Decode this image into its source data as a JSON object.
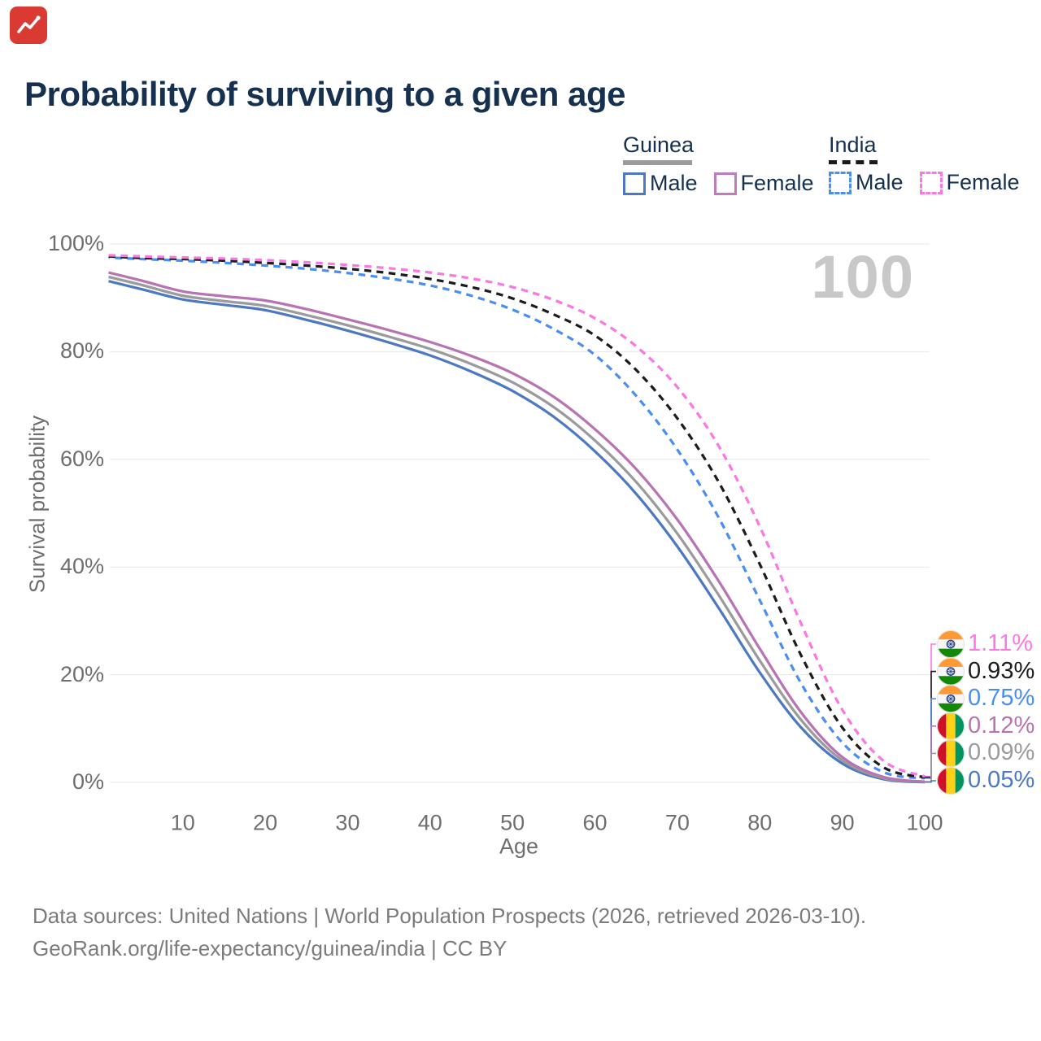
{
  "logo": {
    "name": "GeoRank",
    "color": "#d93b33",
    "glyph": "line-chart"
  },
  "title": "Probability of surviving to a given age",
  "watermark": "100",
  "legend": {
    "groups": [
      {
        "label": "Guinea",
        "underline_style": "solid",
        "underline_color": "#9b9b9b",
        "items": [
          {
            "label": "Male",
            "color": "#4d79c2",
            "dashed": false
          },
          {
            "label": "Female",
            "color": "#c07bbd",
            "dashed": false
          }
        ]
      },
      {
        "label": "India",
        "underline_style": "dashed",
        "underline_color": "#1a1a1a",
        "items": [
          {
            "label": "Male",
            "color": "#4a8ef2",
            "dashed": true
          },
          {
            "label": "Female",
            "color": "#fb78e2",
            "dashed": true
          }
        ]
      }
    ]
  },
  "footer": {
    "line1": "Data sources: United Nations | World Population Prospects (2026, retrieved 2026-03-10).",
    "line2": "GeoRank.org/life-expectancy/guinea/india | CC BY"
  },
  "chart_data": {
    "type": "line",
    "title": "Probability of surviving to a given age",
    "xlabel": "Age",
    "ylabel": "Survival probability",
    "xlim": [
      1,
      100
    ],
    "ylim": [
      0,
      100
    ],
    "grid": "horizontal",
    "legend_position": "top-right",
    "x_axis": {
      "label": "Age",
      "ticks": [
        {
          "v": 10,
          "label": "10"
        },
        {
          "v": 20,
          "label": "20"
        },
        {
          "v": 30,
          "label": "30"
        },
        {
          "v": 40,
          "label": "40"
        },
        {
          "v": 50,
          "label": "50"
        },
        {
          "v": 60,
          "label": "60"
        },
        {
          "v": 70,
          "label": "70"
        },
        {
          "v": 80,
          "label": "80"
        },
        {
          "v": 90,
          "label": "90"
        },
        {
          "v": 100,
          "label": "100"
        }
      ]
    },
    "y_axis": {
      "label": "Survival probability",
      "ticks": [
        {
          "v": 0,
          "label": "0%"
        },
        {
          "v": 20,
          "label": "20%"
        },
        {
          "v": 40,
          "label": "40%"
        },
        {
          "v": 60,
          "label": "60%"
        },
        {
          "v": 80,
          "label": "80%"
        },
        {
          "v": 100,
          "label": "100%"
        }
      ]
    },
    "ages": [
      1,
      5,
      10,
      15,
      20,
      25,
      30,
      35,
      40,
      45,
      50,
      55,
      60,
      65,
      70,
      75,
      80,
      85,
      90,
      95,
      100
    ],
    "series": [
      {
        "name": "India Female",
        "country": "India",
        "sex": "Female",
        "color": "#fb78e2",
        "dashed": true,
        "flag": "india",
        "end_label": "1.11%",
        "values": [
          97.9,
          97.7,
          97.5,
          97.3,
          97.0,
          96.6,
          96.1,
          95.5,
          94.7,
          93.6,
          92.0,
          89.6,
          86.2,
          81.0,
          73.4,
          62.5,
          47.5,
          29.5,
          13.5,
          4.0,
          1.11
        ]
      },
      {
        "name": "India Both sexes",
        "country": "India",
        "sex": "Both",
        "color": "#1c1c1c",
        "dashed": true,
        "flag": "india",
        "end_label": "0.93%",
        "values": [
          97.7,
          97.4,
          97.2,
          96.9,
          96.5,
          96.0,
          95.4,
          94.6,
          93.5,
          92.0,
          89.9,
          86.9,
          83.0,
          76.6,
          67.6,
          55.8,
          40.5,
          23.6,
          10.2,
          2.8,
          0.93
        ]
      },
      {
        "name": "India Male",
        "country": "India",
        "sex": "Male",
        "color": "#4a8ef2",
        "dashed": true,
        "flag": "india",
        "end_label": "0.75%",
        "values": [
          97.5,
          97.2,
          96.9,
          96.5,
          96.0,
          95.4,
          94.6,
          93.6,
          92.3,
          90.4,
          87.8,
          84.2,
          79.4,
          71.8,
          61.8,
          49.2,
          33.8,
          18.4,
          7.4,
          1.9,
          0.75
        ]
      },
      {
        "name": "Guinea Female",
        "country": "Guinea",
        "sex": "Female",
        "color": "#b873b3",
        "dashed": false,
        "flag": "guinea",
        "end_label": "0.12%",
        "values": [
          94.7,
          93.2,
          91.2,
          90.3,
          89.5,
          87.9,
          86.0,
          84.0,
          81.8,
          79.2,
          76.0,
          71.6,
          65.6,
          58.2,
          48.8,
          37.4,
          24.8,
          13.0,
          4.7,
          1.0,
          0.12
        ]
      },
      {
        "name": "Guinea Both sexes",
        "country": "Guinea",
        "sex": "Both",
        "color": "#9b9b9b",
        "dashed": false,
        "flag": "guinea",
        "end_label": "0.09%",
        "values": [
          93.9,
          92.4,
          90.4,
          89.4,
          88.5,
          86.8,
          84.9,
          82.8,
          80.5,
          77.7,
          74.3,
          69.7,
          63.5,
          55.8,
          46.2,
          34.8,
          22.6,
          11.6,
          4.1,
          0.8,
          0.09
        ]
      },
      {
        "name": "Guinea Male",
        "country": "Guinea",
        "sex": "Male",
        "color": "#4d79c2",
        "dashed": false,
        "flag": "guinea",
        "end_label": "0.05%",
        "values": [
          93.1,
          91.6,
          89.7,
          88.7,
          87.7,
          85.9,
          83.9,
          81.7,
          79.3,
          76.3,
          72.7,
          67.9,
          61.5,
          53.6,
          43.8,
          32.4,
          20.4,
          10.2,
          3.5,
          0.6,
          0.05
        ]
      }
    ],
    "flag_colors": {
      "india": {
        "top": "#FF9933",
        "middle": "#f6f6f6",
        "bottom": "#138808",
        "chakra": "#26428b"
      },
      "guinea": {
        "left": "#CE1126",
        "middle": "#FCD116",
        "right": "#009460"
      }
    }
  }
}
